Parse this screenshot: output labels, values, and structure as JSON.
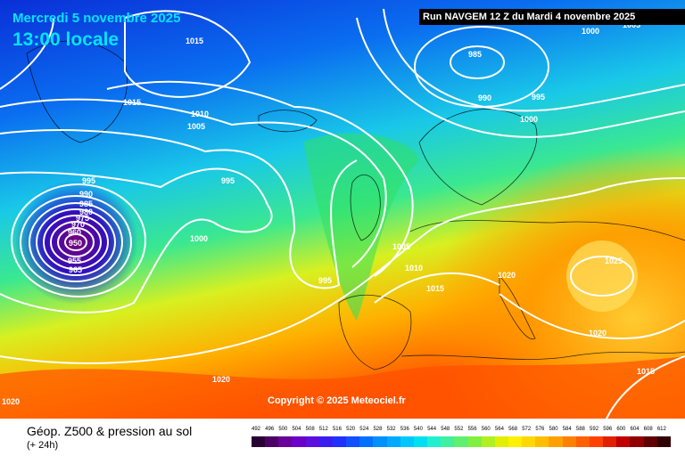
{
  "header": {
    "date_text": "Mercredi 5 novembre 2025",
    "time_text": "13:00 locale",
    "run_text": "Run NAVGEM 12 Z du Mardi 4 novembre 2025"
  },
  "map": {
    "copyright": "Copyright © 2025 Meteociel.fr",
    "isobar_labels": [
      "1015",
      "1015",
      "1010",
      "1005",
      "1000",
      "985",
      "990",
      "995",
      "1000",
      "1005",
      "995",
      "990",
      "985",
      "980",
      "975",
      "970",
      "960",
      "955",
      "950",
      "965",
      "995",
      "1000",
      "1005",
      "1010",
      "1015",
      "995",
      "1020",
      "1025",
      "1020",
      "1015",
      "1020",
      "1020",
      "1005"
    ],
    "pressure_systems": [
      {
        "name": "low-greenland-sea",
        "label": "985"
      },
      {
        "name": "low-atlantic-deep",
        "label": "950"
      },
      {
        "name": "high-balkans",
        "label": "1025"
      }
    ]
  },
  "footer": {
    "product_title": "Géop. Z500 & pression au sol",
    "product_sub": "(+ 24h)"
  },
  "scale": {
    "labels": [
      "492",
      "496",
      "500",
      "504",
      "508",
      "512",
      "516",
      "520",
      "524",
      "528",
      "532",
      "536",
      "540",
      "544",
      "548",
      "552",
      "556",
      "560",
      "564",
      "568",
      "572",
      "576",
      "580",
      "584",
      "588",
      "592",
      "596",
      "600",
      "604",
      "608",
      "612"
    ],
    "colors": [
      "#2a0033",
      "#4b0066",
      "#6a0099",
      "#6b00c8",
      "#5b10e0",
      "#3a1ef0",
      "#2030ff",
      "#1050ff",
      "#0070ff",
      "#0090ff",
      "#00aaff",
      "#00c8ff",
      "#00e0f0",
      "#20f0d0",
      "#40f0a0",
      "#60f070",
      "#80f040",
      "#b0f020",
      "#e0f000",
      "#fff000",
      "#ffd800",
      "#ffbd00",
      "#ffa000",
      "#ff8000",
      "#ff6000",
      "#ff4000",
      "#e02000",
      "#c00000",
      "#900000",
      "#600000",
      "#300000"
    ]
  }
}
